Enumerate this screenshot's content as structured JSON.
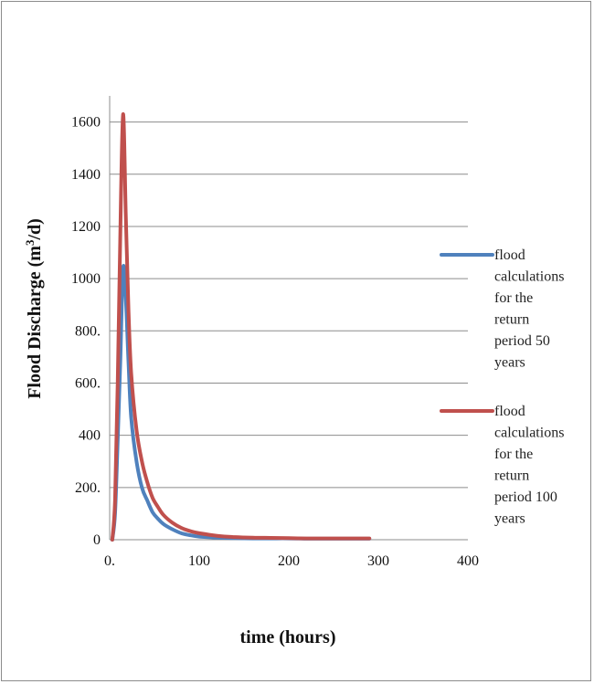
{
  "chart_data": {
    "type": "line",
    "title": "",
    "xlabel": "time (hours)",
    "ylabel_main": "Flood Discharge (m",
    "ylabel_sup": "3",
    "ylabel_end": "/d)",
    "xlim": [
      0,
      400
    ],
    "ylim": [
      0,
      1700
    ],
    "xticks": [
      0,
      100,
      200,
      300,
      400
    ],
    "xtick_labels": [
      "0.",
      "100",
      "200",
      "300",
      "400"
    ],
    "yticks": [
      0,
      200,
      400,
      600,
      800,
      1000,
      1200,
      1400,
      1600
    ],
    "ytick_labels": [
      "0",
      "200.",
      "400",
      "600.",
      "800.",
      "1000",
      "1200",
      "1400",
      "1600"
    ],
    "grid": "horizontal",
    "legend_position": "right",
    "series": [
      {
        "name": "flood calculations for the return period 50 years",
        "legend_lines": [
          "flood",
          "calculations",
          "for the",
          "return",
          "period 50",
          "years"
        ],
        "color": "#4f81bd",
        "x": [
          3,
          6,
          9,
          12,
          15,
          18,
          21,
          24,
          30,
          36,
          42,
          48,
          54,
          60,
          70,
          80,
          90,
          100,
          120,
          140,
          160,
          180,
          200,
          220,
          240,
          260,
          280,
          290
        ],
        "y": [
          0,
          100,
          380,
          700,
          1040,
          930,
          680,
          470,
          300,
          200,
          150,
          105,
          80,
          60,
          40,
          25,
          17,
          12,
          8,
          6,
          5,
          5,
          5,
          4,
          4,
          4,
          4,
          4
        ]
      },
      {
        "name": "flood calculations for the return period 100 years",
        "legend_lines": [
          "flood",
          "calculations",
          "for the",
          "return",
          "period 100",
          "years"
        ],
        "color": "#c0504d",
        "x": [
          3,
          6,
          9,
          12,
          15,
          18,
          21,
          24,
          30,
          36,
          42,
          48,
          54,
          60,
          70,
          80,
          90,
          100,
          120,
          140,
          160,
          180,
          200,
          220,
          240,
          260,
          280,
          290
        ],
        "y": [
          0,
          150,
          600,
          1200,
          1630,
          1250,
          880,
          640,
          420,
          300,
          220,
          160,
          125,
          95,
          65,
          45,
          33,
          25,
          15,
          10,
          8,
          7,
          6,
          5,
          5,
          5,
          5,
          5
        ]
      }
    ]
  }
}
